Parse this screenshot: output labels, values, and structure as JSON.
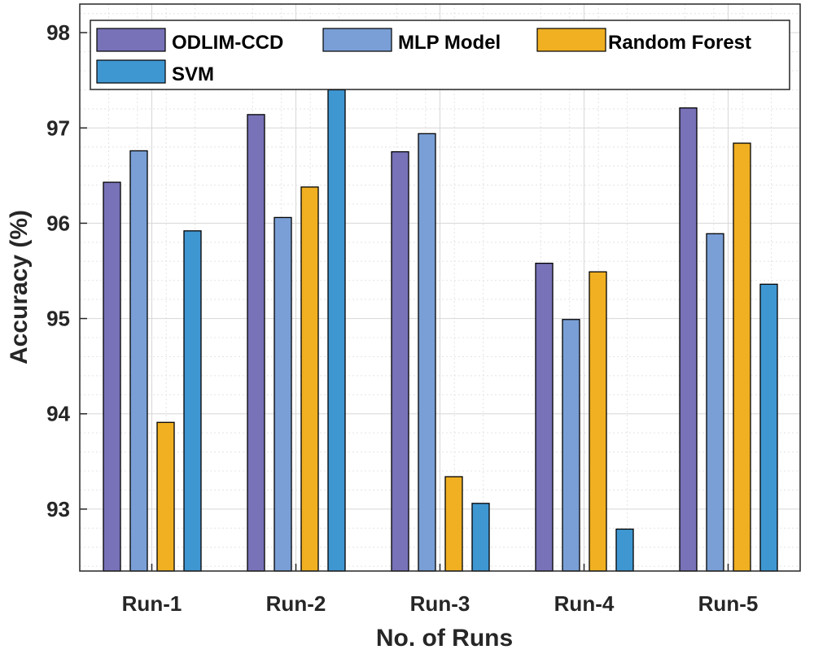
{
  "chart_data": {
    "type": "bar",
    "categories": [
      "Run-1",
      "Run-2",
      "Run-3",
      "Run-4",
      "Run-5"
    ],
    "series": [
      {
        "name": "ODLIM-CCD",
        "color": "#7872b8",
        "values": [
          96.43,
          97.14,
          96.75,
          95.58,
          97.21
        ]
      },
      {
        "name": "MLP Model",
        "color": "#7a9fd6",
        "values": [
          96.76,
          96.06,
          96.94,
          94.99,
          95.89
        ]
      },
      {
        "name": "Random Forest",
        "color": "#f0b022",
        "values": [
          93.91,
          96.38,
          93.34,
          95.49,
          96.84
        ]
      },
      {
        "name": "SVM",
        "color": "#3f97d2",
        "values": [
          95.92,
          97.4,
          93.06,
          92.79,
          95.36
        ]
      }
    ],
    "title": "",
    "xlabel": "No. of Runs",
    "ylabel": "Accuracy (%)",
    "ylim": [
      92.35,
      98.3
    ],
    "yticks": [
      93,
      94,
      95,
      96,
      97,
      98
    ],
    "ytick_labels": [
      "93",
      "94",
      "95",
      "96",
      "97",
      "98"
    ],
    "grid": true,
    "legend_position": "top"
  }
}
